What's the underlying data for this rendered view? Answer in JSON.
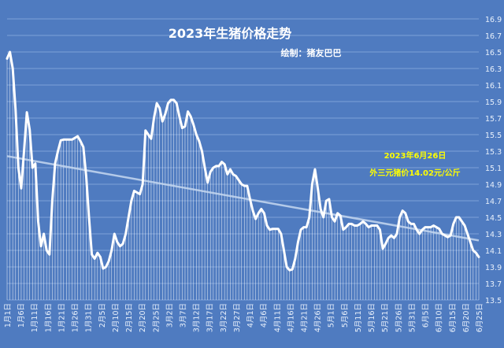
{
  "chart_data": {
    "type": "line",
    "title": "2023年生猪价格走势",
    "subtitle": "绘制：猪友巴巴",
    "annotation": {
      "line1": "2023年6月26日",
      "line2": "外三元猪价14.02元/公斤",
      "color": "#ffff00"
    },
    "xlabel": "",
    "ylabel": "",
    "ylim": [
      13.5,
      16.9
    ],
    "yticks": [
      "13.5",
      "13.7",
      "13.9",
      "14.1",
      "14.3",
      "14.5",
      "14.7",
      "14.9",
      "15.1",
      "15.3",
      "15.5",
      "15.7",
      "15.9",
      "16.1",
      "16.3",
      "16.5",
      "16.7",
      "16.9"
    ],
    "xtick_labels": [
      "1月1日",
      "1月6日",
      "1月11日",
      "1月16日",
      "1月21日",
      "1月26日",
      "1月31日",
      "2月5日",
      "2月10日",
      "2月15日",
      "2月20日",
      "2月25日",
      "3月2日",
      "3月7日",
      "3月12日",
      "3月17日",
      "3月22日",
      "3月27日",
      "4月1日",
      "4月6日",
      "4月11日",
      "4月16日",
      "4月21日",
      "4月26日",
      "5月1日",
      "5月6日",
      "5月11日",
      "5月16日",
      "5月21日",
      "5月26日",
      "5月31日",
      "6月5日",
      "6月10日",
      "6月15日",
      "6月20日",
      "6月25日"
    ],
    "grid": true,
    "trendline": {
      "start": 15.24,
      "end": 14.22
    },
    "series": [
      {
        "values": [
          16.42,
          16.5,
          16.3,
          15.8,
          15.1,
          14.85,
          15.3,
          15.77,
          15.56,
          15.1,
          15.15,
          14.45,
          14.15,
          14.3,
          14.1,
          14.05,
          14.7,
          15.15,
          15.3,
          15.43,
          15.44,
          15.44,
          15.44,
          15.44,
          15.46,
          15.48,
          15.42,
          15.35,
          15.0,
          14.5,
          14.05,
          14.0,
          14.07,
          14.02,
          13.88,
          13.9,
          13.97,
          14.1,
          14.3,
          14.2,
          14.15,
          14.18,
          14.3,
          14.5,
          14.7,
          14.82,
          14.8,
          14.78,
          14.9,
          15.55,
          15.5,
          15.45,
          15.7,
          15.88,
          15.82,
          15.66,
          15.75,
          15.88,
          15.92,
          15.92,
          15.88,
          15.72,
          15.58,
          15.6,
          15.78,
          15.72,
          15.62,
          15.5,
          15.42,
          15.3,
          15.1,
          14.92,
          15.05,
          15.1,
          15.12,
          15.12,
          15.17,
          15.14,
          15.02,
          15.08,
          15.02,
          15.0,
          14.95,
          14.9,
          14.88,
          14.88,
          14.72,
          14.58,
          14.48,
          14.55,
          14.6,
          14.55,
          14.4,
          14.35,
          14.36,
          14.36,
          14.36,
          14.3,
          14.1,
          13.9,
          13.86,
          13.87,
          14.0,
          14.2,
          14.35,
          14.38,
          14.38,
          14.5,
          14.9,
          15.08,
          14.85,
          14.6,
          14.5,
          14.7,
          14.72,
          14.5,
          14.45,
          14.55,
          14.52,
          14.35,
          14.38,
          14.42,
          14.42,
          14.4,
          14.4,
          14.42,
          14.45,
          14.42,
          14.38,
          14.4,
          14.4,
          14.4,
          14.35,
          14.12,
          14.18,
          14.25,
          14.28,
          14.25,
          14.3,
          14.5,
          14.58,
          14.55,
          14.45,
          14.42,
          14.42,
          14.35,
          14.3,
          14.35,
          14.38,
          14.38,
          14.38,
          14.4,
          14.38,
          14.36,
          14.3,
          14.28,
          14.26,
          14.28,
          14.42,
          14.5,
          14.5,
          14.45,
          14.4,
          14.3,
          14.2,
          14.1,
          14.07,
          14.02
        ]
      }
    ]
  },
  "colors": {
    "background": "#4f7bc0",
    "line": "#ffffff",
    "grid": "#7ea2d8",
    "trend": "#c5d8f0",
    "text": "#ffffff",
    "tick": "#e8f0fb"
  }
}
